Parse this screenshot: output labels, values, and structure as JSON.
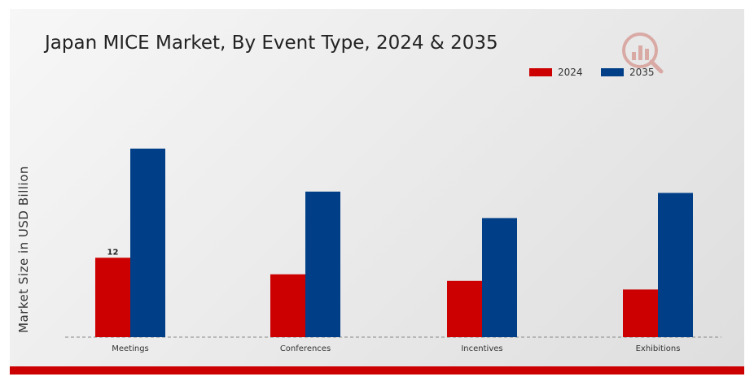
{
  "chart_data": {
    "type": "bar",
    "title": "Japan MICE Market, By Event Type, 2024 & 2035",
    "ylabel": "Market Size in USD Billion",
    "xlabel": "",
    "categories": [
      "Meetings",
      "Conferences",
      "Incentives",
      "Exhibitions"
    ],
    "series": [
      {
        "name": "2024",
        "color": "#cc0000",
        "values": [
          12.0,
          9.5,
          8.5,
          7.2
        ]
      },
      {
        "name": "2035",
        "color": "#003f87",
        "values": [
          28.5,
          22.0,
          18.0,
          21.8
        ]
      }
    ],
    "data_labels": [
      {
        "series": "2024",
        "category": "Meetings",
        "text": "12"
      }
    ],
    "ylim": [
      0,
      35
    ],
    "grid": false,
    "legend_position": "top-right",
    "baseline_style": "dashed"
  }
}
